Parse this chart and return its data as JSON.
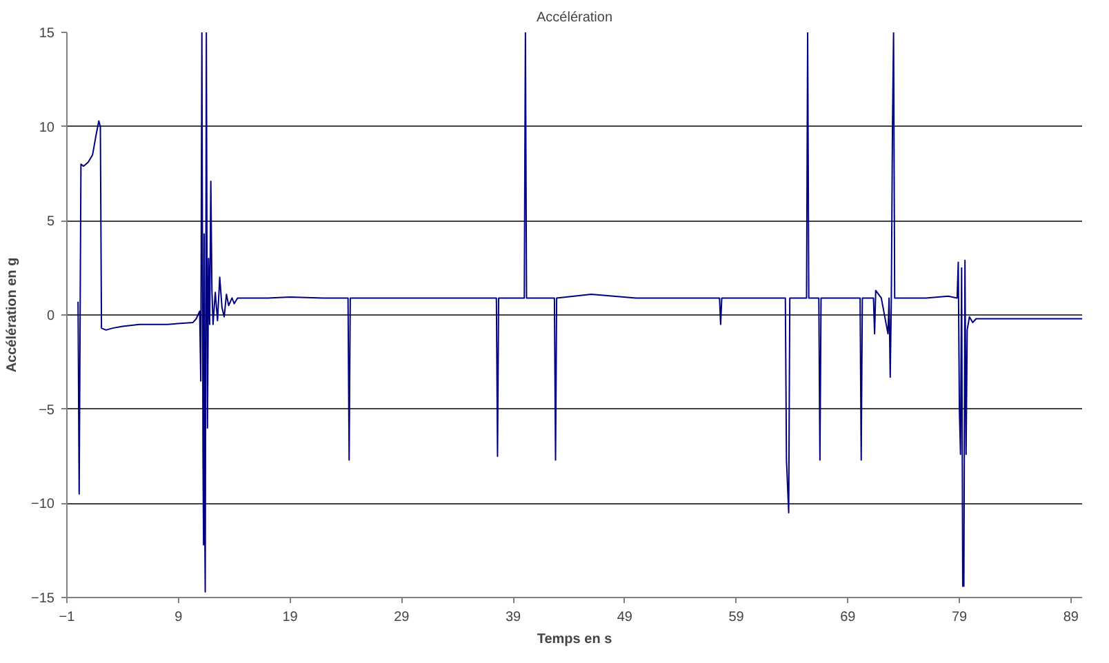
{
  "chart_data": {
    "type": "line",
    "title": "Accélération",
    "xlabel": "Temps en s",
    "ylabel": "Accélération en g",
    "xlim": [
      -1,
      90
    ],
    "xticks": [
      -1,
      9,
      19,
      29,
      39,
      49,
      59,
      69,
      79,
      89
    ],
    "ylim": [
      -15,
      15
    ],
    "yticks": [
      -15,
      -10,
      -5,
      0,
      5,
      10,
      15
    ],
    "grid": "y",
    "marker": "none",
    "line_style": "solid",
    "series": [
      {
        "color": "#000080",
        "x": [
          0.0,
          0.1,
          0.26,
          0.5,
          0.9,
          1.3,
          1.6,
          1.86,
          2.0,
          2.1,
          2.5,
          3.1,
          4.0,
          5.5,
          8.0,
          10.3,
          10.6,
          10.9,
          11.0,
          11.1,
          11.2,
          11.25,
          11.3,
          11.35,
          11.4,
          11.5,
          11.6,
          11.7,
          11.8,
          11.9,
          12.0,
          12.1,
          12.3,
          12.5,
          12.7,
          12.9,
          13.1,
          13.3,
          13.5,
          13.8,
          14.0,
          14.3,
          17,
          19,
          22,
          24.2,
          24.3,
          24.4,
          30,
          37.5,
          37.6,
          37.7,
          40.0,
          40.1,
          40.2,
          42.7,
          42.8,
          42.9,
          46,
          50,
          57.5,
          57.6,
          57.7,
          63.4,
          63.5,
          63.7,
          63.8,
          65.3,
          65.4,
          65.5,
          66.4,
          66.5,
          66.6,
          70.1,
          70.2,
          70.3,
          71.3,
          71.4,
          71.5,
          72.0,
          72.6,
          72.7,
          72.8,
          72.9,
          73.0,
          73.1,
          73.2,
          76,
          78.0,
          78.8,
          78.9,
          79.0,
          79.1,
          79.2,
          79.3,
          79.4,
          79.5,
          79.6,
          79.7,
          79.9,
          80.2,
          80.5,
          90
        ],
        "values": [
          0.7,
          -9.5,
          8.0,
          7.9,
          8.1,
          8.5,
          9.5,
          10.3,
          10.0,
          -0.7,
          -0.8,
          -0.7,
          -0.6,
          -0.5,
          -0.5,
          -0.4,
          -0.2,
          0.2,
          -3.5,
          15,
          -7.5,
          -12.2,
          4.3,
          -10.3,
          -14.7,
          15,
          -6,
          3,
          -0.5,
          7.1,
          1.3,
          -0.5,
          1.2,
          -0.3,
          2.0,
          0.4,
          -0.1,
          1.1,
          0.5,
          0.9,
          0.6,
          0.9,
          0.9,
          0.95,
          0.9,
          0.9,
          -7.7,
          0.9,
          0.9,
          0.9,
          -7.5,
          0.9,
          0.9,
          15,
          0.9,
          0.9,
          -7.7,
          0.9,
          1.1,
          0.9,
          0.9,
          -0.5,
          0.9,
          0.9,
          -7.7,
          -10.5,
          0.9,
          0.9,
          15,
          0.9,
          0.9,
          -7.7,
          0.9,
          0.9,
          -7.7,
          0.9,
          0.9,
          -1.0,
          1.3,
          0.9,
          -1.0,
          0.9,
          -3.3,
          0.9,
          9.8,
          15,
          0.9,
          0.9,
          1.0,
          0.9,
          2.8,
          -5.0,
          -7.4,
          2.5,
          -14.4,
          -14.4,
          2.9,
          -7.4,
          -0.8,
          -0.1,
          -0.4,
          -0.2,
          -0.2
        ]
      }
    ]
  }
}
